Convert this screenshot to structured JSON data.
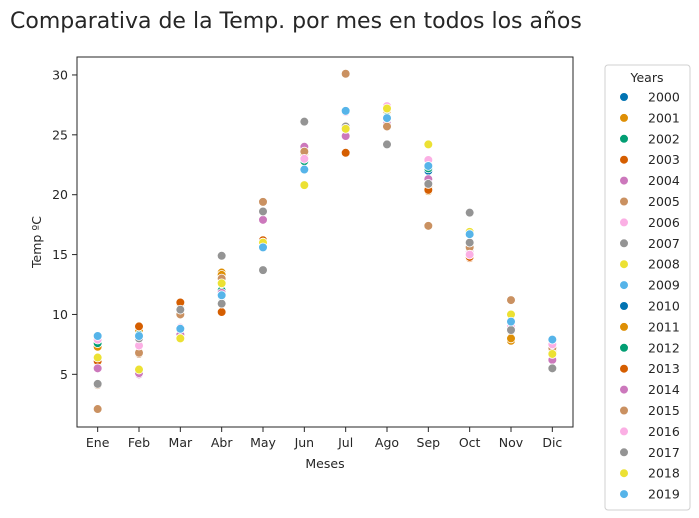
{
  "chart_data": {
    "type": "scatter",
    "title": "Comparativa de la Temp. por mes en todos los años",
    "xlabel": "Meses",
    "ylabel": "Temp ºC",
    "categories": [
      "Ene",
      "Feb",
      "Mar",
      "Abr",
      "May",
      "Jun",
      "Jul",
      "Ago",
      "Sep",
      "Oct",
      "Nov",
      "Dic"
    ],
    "ylim": [
      0.6,
      31.5
    ],
    "yticks": [
      5,
      10,
      15,
      20,
      25,
      30
    ],
    "grid": false,
    "legend": {
      "title": "Years",
      "position": "outside-right"
    },
    "series": [
      {
        "name": "2000",
        "color": "#0173b2",
        "values": [
          6.2,
          8.1,
          10.3,
          11.5,
          16.0,
          23.0,
          25.5,
          26.0,
          22.0,
          16.0,
          9.0,
          6.3
        ]
      },
      {
        "name": "2001",
        "color": "#de8f05",
        "values": [
          7.5,
          8.7,
          10.9,
          13.5,
          16.2,
          23.5,
          25.7,
          26.8,
          20.3,
          15.5,
          7.8,
          6.6
        ]
      },
      {
        "name": "2002",
        "color": "#029e73",
        "values": [
          7.6,
          8.3,
          10.5,
          12.0,
          16.0,
          22.8,
          25.5,
          26.5,
          22.2,
          15.5,
          9.3,
          6.6
        ]
      },
      {
        "name": "2003",
        "color": "#d55e00",
        "values": [
          6.0,
          9.0,
          11.0,
          10.2,
          16.2,
          23.0,
          23.5,
          26.5,
          20.5,
          14.7,
          9.0,
          7.1
        ]
      },
      {
        "name": "2004",
        "color": "#cc78bc",
        "values": [
          5.5,
          5.0,
          8.3,
          11.8,
          17.9,
          24.0,
          24.9,
          25.9,
          21.3,
          15.2,
          9.2,
          6.2
        ]
      },
      {
        "name": "2005",
        "color": "#ca9161",
        "values": [
          2.1,
          6.7,
          10.0,
          13.2,
          19.4,
          23.6,
          30.1,
          25.7,
          17.4,
          15.6,
          11.2,
          7.2
        ]
      },
      {
        "name": "2006",
        "color": "#fbafe4",
        "values": [
          7.9,
          7.4,
          8.9,
          11.6,
          16.0,
          23.0,
          26.9,
          27.4,
          22.9,
          15.0,
          9.0,
          7.5
        ]
      },
      {
        "name": "2007",
        "color": "#949494",
        "values": [
          4.2,
          8.0,
          10.4,
          14.9,
          13.7,
          26.1,
          25.7,
          24.2,
          20.9,
          18.5,
          8.6,
          5.5
        ]
      },
      {
        "name": "2008",
        "color": "#ece133",
        "values": [
          6.4,
          5.4,
          8.0,
          12.6,
          16.0,
          20.8,
          25.5,
          27.2,
          24.2,
          16.9,
          10.0,
          6.7
        ]
      },
      {
        "name": "2009",
        "color": "#56b4e9",
        "values": [
          8.2,
          8.2,
          8.8,
          11.6,
          15.6,
          22.1,
          27.0,
          26.4,
          22.4,
          16.7,
          9.4,
          7.9
        ]
      },
      {
        "name": "2010",
        "color": "#0173b2",
        "values": [
          6.0,
          8.0,
          10.0,
          11.5,
          16.0,
          23.5,
          25.4,
          26.2,
          22.0,
          16.0,
          9.0,
          6.5
        ]
      },
      {
        "name": "2011",
        "color": "#de8f05",
        "values": [
          7.3,
          8.6,
          10.8,
          13.3,
          16.1,
          23.4,
          25.6,
          26.6,
          20.6,
          15.4,
          8.0,
          6.8
        ]
      },
      {
        "name": "2012",
        "color": "#029e73",
        "values": [
          7.6,
          8.3,
          10.5,
          12.0,
          16.0,
          22.8,
          25.5,
          26.5,
          22.2,
          15.5,
          9.3,
          6.6
        ]
      },
      {
        "name": "2013",
        "color": "#d55e00",
        "values": [
          6.1,
          9.0,
          11.0,
          10.2,
          16.2,
          23.0,
          23.5,
          26.4,
          20.4,
          14.8,
          9.1,
          7.0
        ]
      },
      {
        "name": "2014",
        "color": "#cc78bc",
        "values": [
          5.5,
          5.1,
          8.3,
          11.8,
          17.9,
          24.0,
          24.9,
          25.9,
          21.3,
          15.2,
          9.2,
          6.2
        ]
      },
      {
        "name": "2015",
        "color": "#ca9161",
        "values": [
          4.1,
          6.8,
          10.0,
          13.0,
          19.4,
          23.6,
          30.1,
          25.7,
          17.4,
          15.6,
          11.2,
          7.2
        ]
      },
      {
        "name": "2016",
        "color": "#fbafe4",
        "values": [
          7.9,
          7.4,
          8.9,
          11.6,
          16.0,
          23.0,
          26.9,
          27.4,
          22.9,
          15.0,
          9.0,
          7.5
        ]
      },
      {
        "name": "2017",
        "color": "#949494",
        "values": [
          4.2,
          8.0,
          10.4,
          10.9,
          18.6,
          26.1,
          25.7,
          24.2,
          20.9,
          16.0,
          8.7,
          5.5
        ]
      },
      {
        "name": "2018",
        "color": "#ece133",
        "values": [
          6.4,
          5.4,
          8.0,
          12.6,
          16.0,
          20.8,
          25.5,
          27.2,
          24.2,
          16.9,
          10.0,
          6.7
        ]
      },
      {
        "name": "2019",
        "color": "#56b4e9",
        "values": [
          8.2,
          8.2,
          8.8,
          11.6,
          15.6,
          22.1,
          27.0,
          26.4,
          22.4,
          16.7,
          9.4,
          7.9
        ]
      }
    ]
  }
}
